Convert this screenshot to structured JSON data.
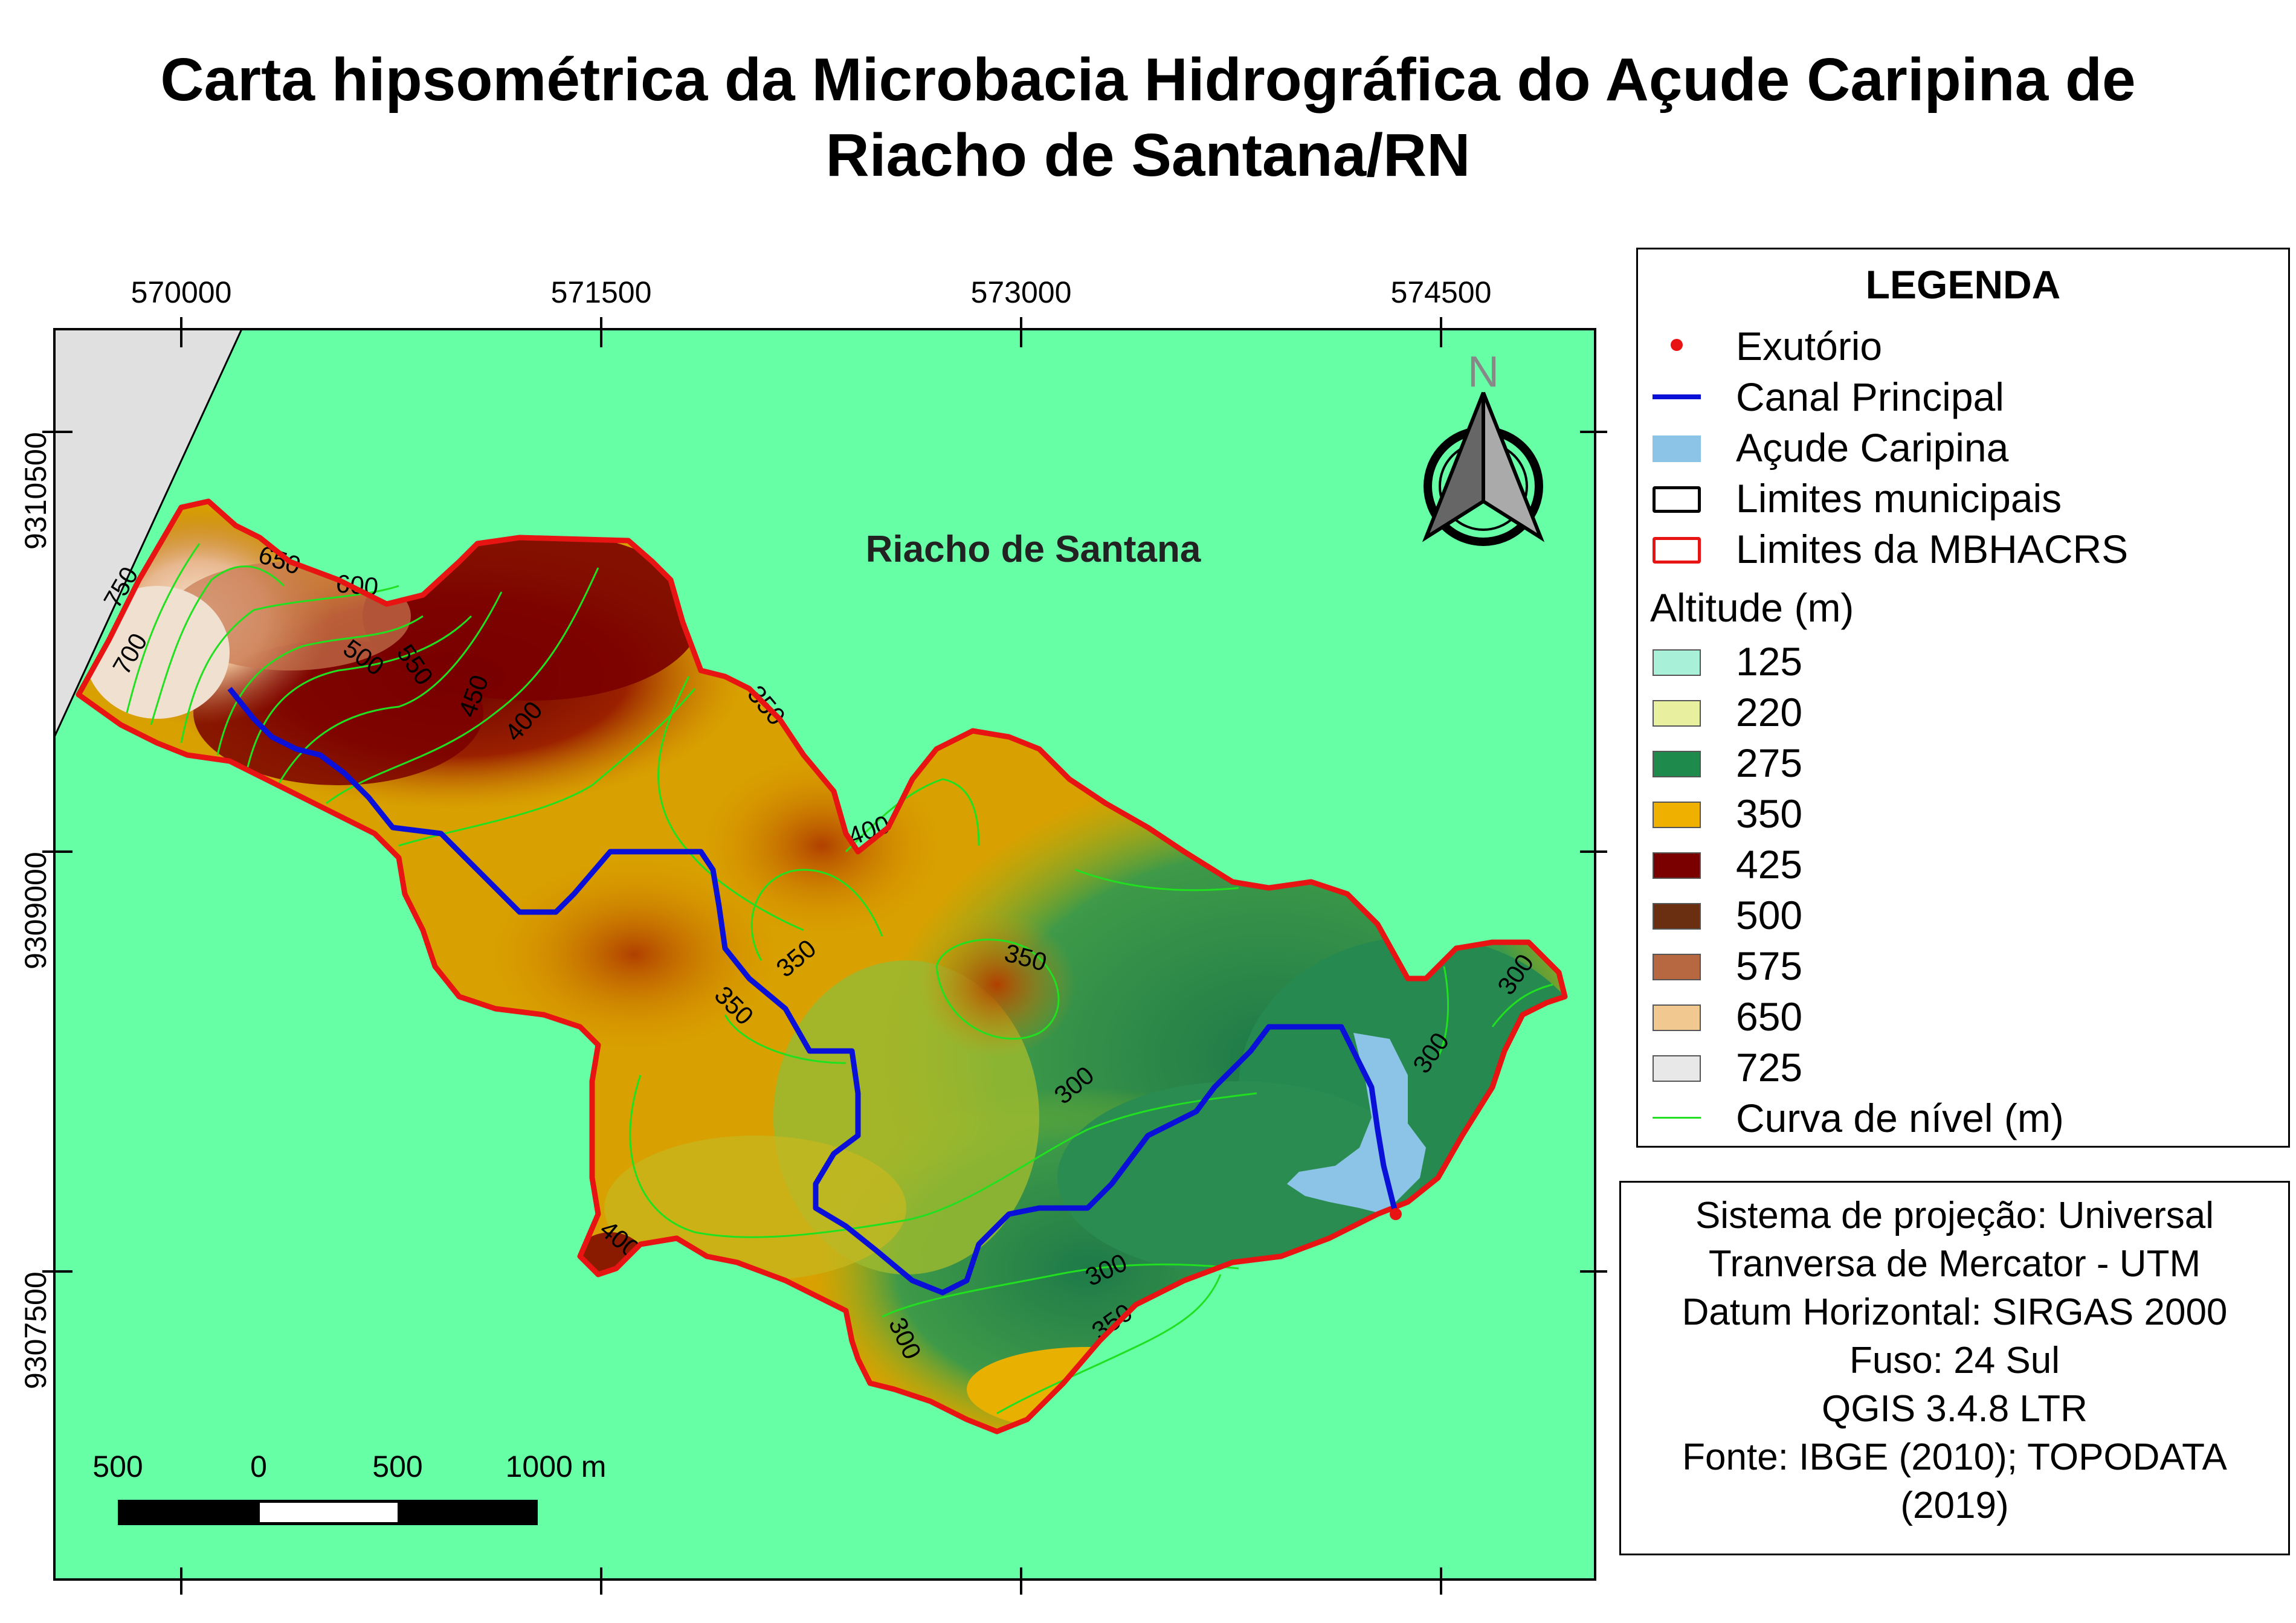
{
  "title_line1": "Carta hipsométrica da Microbacia Hidrográfica do Açude Caripina de",
  "title_line2": "Riacho de Santana/RN",
  "grid": {
    "x_labels": [
      "570000",
      "571500",
      "573000",
      "574500"
    ],
    "y_labels": [
      "9310500",
      "9309000",
      "9307500"
    ]
  },
  "map": {
    "place_label": "Riacho de Santana",
    "north_letter": "N",
    "contour_labels": [
      "750",
      "700",
      "650",
      "600",
      "550",
      "500",
      "450",
      "400",
      "350",
      "400",
      "350",
      "350",
      "350",
      "300",
      "300",
      "300",
      "300",
      "350",
      "300",
      "400"
    ]
  },
  "scale_bar": {
    "labels": [
      "500",
      "0",
      "500",
      "1000 m"
    ]
  },
  "legend": {
    "title": "LEGENDA",
    "items": [
      {
        "label": "Exutório"
      },
      {
        "label": "Canal Principal"
      },
      {
        "label": "Açude Caripina"
      },
      {
        "label": "Limites municipais"
      },
      {
        "label": "Limites da MBHACRS"
      }
    ],
    "altitude_title": "Altitude (m)",
    "altitude_classes": [
      {
        "value": "125",
        "color": "#a8f0d8"
      },
      {
        "value": "220",
        "color": "#e8f0a0"
      },
      {
        "value": "275",
        "color": "#1e8a4c"
      },
      {
        "value": "350",
        "color": "#f0b000"
      },
      {
        "value": "425",
        "color": "#7a0000"
      },
      {
        "value": "500",
        "color": "#6a2e10"
      },
      {
        "value": "575",
        "color": "#b86840"
      },
      {
        "value": "650",
        "color": "#f0c890"
      },
      {
        "value": "725",
        "color": "#e8e8e8"
      }
    ],
    "contour_label": "Curva de nível (m)"
  },
  "info": [
    "Sistema de projeção: Universal",
    "Tranversa de Mercator - UTM",
    "Datum Horizontal: SIRGAS 2000",
    "Fuso: 24 Sul",
    "QGIS 3.4.8 LTR",
    "Fonte: IBGE (2010); TOPODATA",
    "(2019)"
  ],
  "colors": {
    "background_mint": "#66ffa6",
    "neighbor_gray": "#e0e0e0",
    "basin_border": "#e81414",
    "channel": "#0a10d8",
    "reservoir": "#8cc4e8",
    "outlet": "#e81414",
    "contour": "#20e020"
  }
}
